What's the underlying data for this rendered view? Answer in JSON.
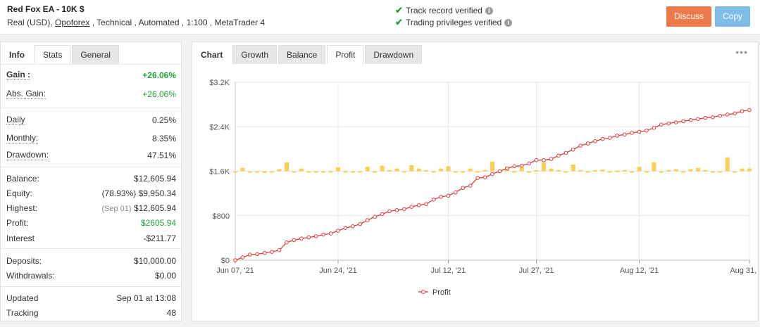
{
  "header": {
    "title": "Red Fox EA - 10K $",
    "sub_prefix": "Real (USD), ",
    "broker": "Opoforex",
    "sub_suffix": " , Technical , Automated , 1:100 , MetaTrader 4",
    "track_record": "Track record verified",
    "trading_privileges": "Trading privileges verified",
    "discuss_label": "Discuss",
    "copy_label": "Copy"
  },
  "left_tabs": {
    "info": "Info",
    "stats": "Stats",
    "general": "General"
  },
  "stats": {
    "gain": {
      "label": "Gain :",
      "value": "+26.06%"
    },
    "abs_gain": {
      "label": "Abs. Gain:",
      "value": "+26.06%"
    },
    "daily": {
      "label": "Daily",
      "value": "0.25%"
    },
    "monthly": {
      "label": "Monthly:",
      "value": "8.35%"
    },
    "drawdown": {
      "label": "Drawdown:",
      "value": "47.51%"
    },
    "balance": {
      "label": "Balance:",
      "value": "$12,605.94"
    },
    "equity": {
      "label": "Equity:",
      "prefix": "(78.93%)",
      "value": "$9,950.34"
    },
    "highest": {
      "label": "Highest:",
      "prefix": "(Sep 01)",
      "value": "$12,605.94"
    },
    "profit": {
      "label": "Profit:",
      "value": "$2605.94"
    },
    "interest": {
      "label": "Interest",
      "value": "-$211.77"
    },
    "deposits": {
      "label": "Deposits:",
      "value": "$10,000.00"
    },
    "withdrawals": {
      "label": "Withdrawals:",
      "value": "$0.00"
    },
    "updated": {
      "label": "Updated",
      "value": "Sep 01 at 13:08"
    },
    "tracking": {
      "label": "Tracking",
      "value": "48"
    }
  },
  "chart_tabs": {
    "chart": "Chart",
    "growth": "Growth",
    "balance": "Balance",
    "profit": "Profit",
    "drawdown": "Drawdown"
  },
  "colors": {
    "line": "#e03b3b",
    "bar": "#f9d053",
    "green": "#21a33b",
    "discuss": "#ee7a4b",
    "copy": "#7fbde8"
  },
  "chart_data": {
    "type": "line",
    "title": "",
    "xlabel": "",
    "ylabel": "",
    "ylim": [
      0,
      3200
    ],
    "y_ticks": [
      0,
      800,
      1600,
      2400,
      3200
    ],
    "y_tick_labels": [
      "$0",
      "$800",
      "$1.6K",
      "$2.4K",
      "$3.2K"
    ],
    "x_ticks": [
      "Jun 07, '21",
      "Jun 24, '21",
      "Jul 12, '21",
      "Jul 27, '21",
      "Aug 12, '21",
      "Aug 31, '21"
    ],
    "x_tick_index": [
      0,
      14,
      29,
      41,
      55,
      70
    ],
    "grid": true,
    "legend": "bottom-center",
    "series": [
      {
        "name": "Profit",
        "values": [
          0,
          50,
          100,
          110,
          130,
          150,
          180,
          320,
          360,
          390,
          410,
          430,
          460,
          480,
          530,
          580,
          610,
          650,
          720,
          780,
          830,
          880,
          900,
          920,
          960,
          990,
          1010,
          1090,
          1140,
          1160,
          1220,
          1300,
          1340,
          1480,
          1490,
          1550,
          1600,
          1650,
          1690,
          1700,
          1740,
          1800,
          1800,
          1820,
          1880,
          1930,
          1990,
          2060,
          2100,
          2140,
          2180,
          2200,
          2240,
          2260,
          2290,
          2310,
          2330,
          2380,
          2440,
          2460,
          2480,
          2500,
          2520,
          2540,
          2560,
          2570,
          2600,
          2620,
          2640,
          2680,
          2700
        ]
      }
    ],
    "bar_series": {
      "values": [
        1600,
        1660,
        1580,
        1600,
        1570,
        1600,
        1640,
        1760,
        1600,
        1650,
        1600,
        1600,
        1580,
        1600,
        1670,
        1580,
        1600,
        1590,
        1680,
        1600,
        1700,
        1620,
        1650,
        1600,
        1710,
        1650,
        1620,
        1600,
        1650,
        1690,
        1600,
        1590,
        1650,
        1600,
        1620,
        1770,
        1600,
        1680,
        1580,
        1690,
        1600,
        1620,
        1760,
        1650,
        1620,
        1600,
        1720,
        1620,
        1600,
        1620,
        1630,
        1600,
        1610,
        1620,
        1600,
        1680,
        1600,
        1760,
        1600,
        1620,
        1640,
        1600,
        1640,
        1660,
        1620,
        1600,
        1600,
        1850,
        1600,
        1650,
        1650
      ]
    }
  }
}
